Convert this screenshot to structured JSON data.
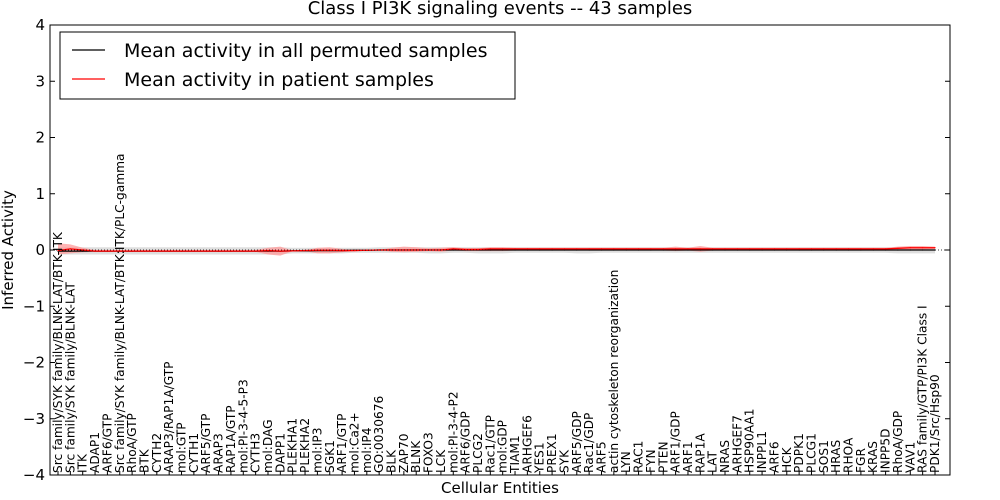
{
  "chart_data": {
    "type": "line",
    "title": "Class I PI3K signaling events -- 43 samples",
    "xlabel": "Cellular Entities",
    "ylabel": "Inferred Activity",
    "ylim": [
      -4,
      4
    ],
    "yticks": [
      -4,
      -3,
      -2,
      -1,
      0,
      1,
      2,
      3,
      4
    ],
    "ytick_labels": [
      "−4",
      "−3",
      "−2",
      "−1",
      "0",
      "1",
      "2",
      "3",
      "4"
    ],
    "legend_location": "upper-left",
    "categories": [
      "Src family/SYK family/BLNK-LAT/BTK-ITK",
      "Src family/SYK family/BLNK-LAT",
      "ITK",
      "ADAP1",
      "ARF6/GTP",
      "Src family/SYK family/BLNK-LAT/BTK:ITK/PLC-gamma",
      "RhoA/GTP",
      "BTK",
      "CYTH2",
      "ARAP3/RAP1A/GTP",
      "mol:GTP",
      "CYTH1",
      "ARF5/GTP",
      "ARAP3",
      "RAP1A/GTP",
      "mol:PI-3-4-5-P3",
      "CYTH3",
      "mol:DAG",
      "DAPP1",
      "PLEKHA1",
      "PLEKHA2",
      "mol:IP3",
      "SGK1",
      "ARF1/GTP",
      "mol:Ca2+",
      "mol:IP4",
      "GO:0030676",
      "BLK",
      "ZAP70",
      "BLNK",
      "FOXO3",
      "LCK",
      "mol:PI-3-4-P2",
      "ARF6/GDP",
      "PLCG2",
      "Rac1/GTP",
      "mol:GDP",
      "TIAM1",
      "ARHGEF6",
      "YES1",
      "PREX1",
      "SYK",
      "ARF5/GDP",
      "Rac1/GDP",
      "ARF5",
      "actin cytoskeleton reorganization",
      "LYN",
      "RAC1",
      "FYN",
      "PTEN",
      "ARF1/GDP",
      "ARF1",
      "RAP1A",
      "LAT",
      "NRAS",
      "ARHGEF7",
      "HSP90AA1",
      "INPPL1",
      "ARF6",
      "HCK",
      "PDPK1",
      "PLCG1",
      "SOS1",
      "HRAS",
      "RHOA",
      "FGR",
      "KRAS",
      "INPP5D",
      "RhoA/GDP",
      "VAV1",
      "RAS family/GTP/PI3K Class I",
      "PDK1/Src/Hsp90"
    ],
    "series": [
      {
        "name": "Mean activity in all permuted samples",
        "color": "#000000",
        "values": [
          -0.02,
          -0.02,
          -0.02,
          -0.02,
          -0.02,
          -0.02,
          -0.02,
          -0.02,
          -0.02,
          -0.02,
          -0.02,
          -0.02,
          -0.02,
          -0.02,
          -0.02,
          -0.02,
          -0.02,
          -0.02,
          -0.02,
          -0.015,
          -0.015,
          -0.01,
          -0.01,
          -0.01,
          -0.005,
          -0.005,
          0.0,
          0.0,
          0.0,
          0.0,
          0.0,
          0.0,
          0.0,
          0.0,
          0.0,
          0.0,
          0.0,
          0.0,
          0.0,
          0.0,
          0.0,
          0.0,
          0.0,
          0.0,
          0.0,
          0.0,
          0.0,
          0.0,
          0.0,
          0.0,
          0.0,
          0.0,
          0.0,
          0.0,
          0.0,
          0.0,
          0.0,
          0.0,
          0.0,
          0.0,
          0.0,
          0.0,
          0.0,
          0.0,
          0.0,
          0.0,
          0.0,
          0.0,
          0.0,
          0.0,
          0.0,
          0.0
        ],
        "band_upper": [
          0.05,
          0.05,
          0.05,
          0.05,
          0.05,
          0.05,
          0.05,
          0.05,
          0.05,
          0.05,
          0.05,
          0.05,
          0.05,
          0.05,
          0.05,
          0.05,
          0.05,
          0.05,
          0.05,
          0.04,
          0.04,
          0.04,
          0.04,
          0.04,
          0.04,
          0.04,
          0.05,
          0.05,
          0.05,
          0.05,
          0.05,
          0.05,
          0.05,
          0.05,
          0.05,
          0.05,
          0.05,
          0.05,
          0.05,
          0.05,
          0.05,
          0.05,
          0.05,
          0.05,
          0.05,
          0.05,
          0.05,
          0.05,
          0.05,
          0.05,
          0.05,
          0.05,
          0.05,
          0.05,
          0.05,
          0.05,
          0.05,
          0.05,
          0.05,
          0.05,
          0.05,
          0.05,
          0.05,
          0.05,
          0.05,
          0.05,
          0.05,
          0.05,
          0.05,
          0.05,
          0.05,
          0.05
        ],
        "band_lower": [
          -0.08,
          -0.08,
          -0.08,
          -0.08,
          -0.08,
          -0.08,
          -0.08,
          -0.08,
          -0.08,
          -0.08,
          -0.08,
          -0.08,
          -0.08,
          -0.08,
          -0.08,
          -0.08,
          -0.08,
          -0.08,
          -0.08,
          -0.06,
          -0.06,
          -0.06,
          -0.06,
          -0.06,
          -0.05,
          -0.05,
          -0.05,
          -0.05,
          -0.05,
          -0.05,
          -0.06,
          -0.06,
          -0.05,
          -0.05,
          -0.06,
          -0.06,
          -0.06,
          -0.05,
          -0.05,
          -0.05,
          -0.05,
          -0.05,
          -0.06,
          -0.06,
          -0.05,
          -0.05,
          -0.05,
          -0.05,
          -0.05,
          -0.05,
          -0.05,
          -0.05,
          -0.05,
          -0.05,
          -0.05,
          -0.05,
          -0.05,
          -0.05,
          -0.05,
          -0.05,
          -0.05,
          -0.05,
          -0.05,
          -0.05,
          -0.05,
          -0.05,
          -0.05,
          -0.05,
          -0.06,
          -0.06,
          -0.06,
          -0.06
        ]
      },
      {
        "name": "Mean activity in patient samples",
        "color": "#ff0000",
        "band_color": "#ff9999",
        "values": [
          -0.01,
          0.02,
          0.0,
          -0.02,
          -0.02,
          -0.02,
          -0.02,
          -0.02,
          -0.02,
          -0.02,
          -0.02,
          -0.02,
          -0.02,
          -0.02,
          -0.02,
          -0.02,
          -0.02,
          -0.01,
          -0.02,
          -0.015,
          -0.01,
          -0.005,
          -0.005,
          -0.01,
          -0.01,
          -0.005,
          0.0,
          0.0,
          0.0,
          0.0,
          0.0,
          0.0,
          0.02,
          0.01,
          0.01,
          0.02,
          0.02,
          0.02,
          0.02,
          0.02,
          0.02,
          0.02,
          0.02,
          0.02,
          0.02,
          0.02,
          0.02,
          0.02,
          0.02,
          0.02,
          0.02,
          0.02,
          0.02,
          0.02,
          0.02,
          0.02,
          0.02,
          0.02,
          0.02,
          0.02,
          0.02,
          0.02,
          0.02,
          0.02,
          0.02,
          0.02,
          0.02,
          0.02,
          0.03,
          0.04,
          0.04,
          0.04
        ],
        "band_upper": [
          0.12,
          0.1,
          0.04,
          0.0,
          0.0,
          0.0,
          0.0,
          0.0,
          0.0,
          0.0,
          0.0,
          0.0,
          0.0,
          0.0,
          0.0,
          0.0,
          0.0,
          0.04,
          0.06,
          -0.01,
          -0.01,
          0.04,
          0.05,
          0.02,
          0.0,
          0.0,
          0.0,
          0.04,
          0.06,
          0.05,
          0.03,
          0.04,
          0.05,
          0.03,
          0.03,
          0.05,
          0.05,
          0.04,
          0.04,
          0.04,
          0.04,
          0.04,
          0.04,
          0.04,
          0.04,
          0.04,
          0.04,
          0.04,
          0.04,
          0.04,
          0.06,
          0.04,
          0.07,
          0.04,
          0.04,
          0.04,
          0.04,
          0.04,
          0.04,
          0.04,
          0.04,
          0.04,
          0.04,
          0.04,
          0.04,
          0.04,
          0.04,
          0.04,
          0.06,
          0.07,
          0.07,
          0.06
        ],
        "band_lower": [
          -0.08,
          -0.06,
          -0.04,
          -0.03,
          -0.03,
          -0.03,
          -0.03,
          -0.03,
          -0.03,
          -0.03,
          -0.03,
          -0.03,
          -0.03,
          -0.03,
          -0.03,
          -0.03,
          -0.03,
          -0.08,
          -0.1,
          -0.02,
          -0.02,
          -0.06,
          -0.06,
          -0.04,
          -0.02,
          -0.01,
          0.0,
          -0.03,
          -0.04,
          -0.03,
          -0.02,
          -0.03,
          -0.01,
          -0.02,
          -0.02,
          -0.02,
          -0.02,
          -0.01,
          -0.01,
          -0.01,
          -0.01,
          -0.01,
          -0.01,
          -0.01,
          -0.01,
          -0.01,
          -0.01,
          -0.01,
          -0.01,
          -0.01,
          -0.02,
          -0.01,
          -0.03,
          -0.01,
          -0.01,
          -0.01,
          -0.01,
          -0.01,
          -0.01,
          -0.01,
          -0.01,
          -0.01,
          -0.01,
          -0.01,
          -0.01,
          -0.01,
          -0.01,
          -0.01,
          0.0,
          0.01,
          0.01,
          0.02
        ]
      }
    ]
  }
}
